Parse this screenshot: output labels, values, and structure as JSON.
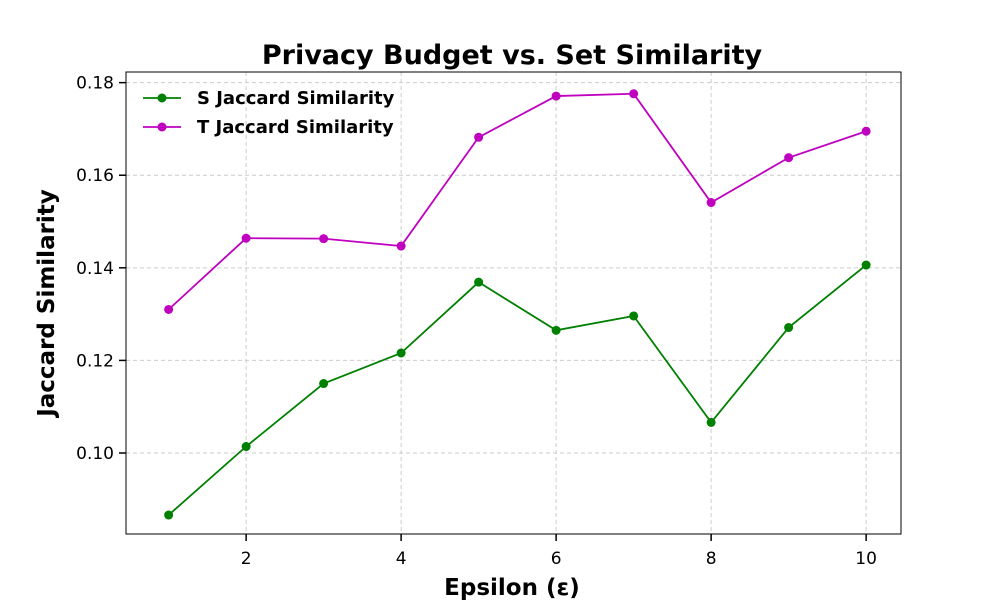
{
  "chart_data": {
    "type": "line",
    "title": "Privacy Budget vs. Set Similarity",
    "xlabel": "Epsilon (ε)",
    "ylabel": "Jaccard Similarity",
    "x": [
      1,
      2,
      3,
      4,
      5,
      6,
      7,
      8,
      9,
      10
    ],
    "xlim": [
      0.45,
      10.45
    ],
    "ylim": [
      0.0825,
      0.1823
    ],
    "xticks": [
      2,
      4,
      6,
      8,
      10
    ],
    "yticks": [
      0.1,
      0.12,
      0.14,
      0.16,
      0.18
    ],
    "ytick_labels": [
      "0.10",
      "0.12",
      "0.14",
      "0.16",
      "0.18"
    ],
    "grid": true,
    "legend_position": "top-left",
    "series": [
      {
        "name": "S Jaccard Similarity",
        "color": "#008000",
        "values": [
          0.0866,
          0.1014,
          0.115,
          0.1216,
          0.1369,
          0.1265,
          0.1296,
          0.1066,
          0.1271,
          0.1406
        ]
      },
      {
        "name": "T Jaccard Similarity",
        "color": "#bf00bf",
        "values": [
          0.131,
          0.1464,
          0.1463,
          0.1447,
          0.1682,
          0.1771,
          0.1776,
          0.1541,
          0.1638,
          0.1695
        ]
      }
    ]
  }
}
